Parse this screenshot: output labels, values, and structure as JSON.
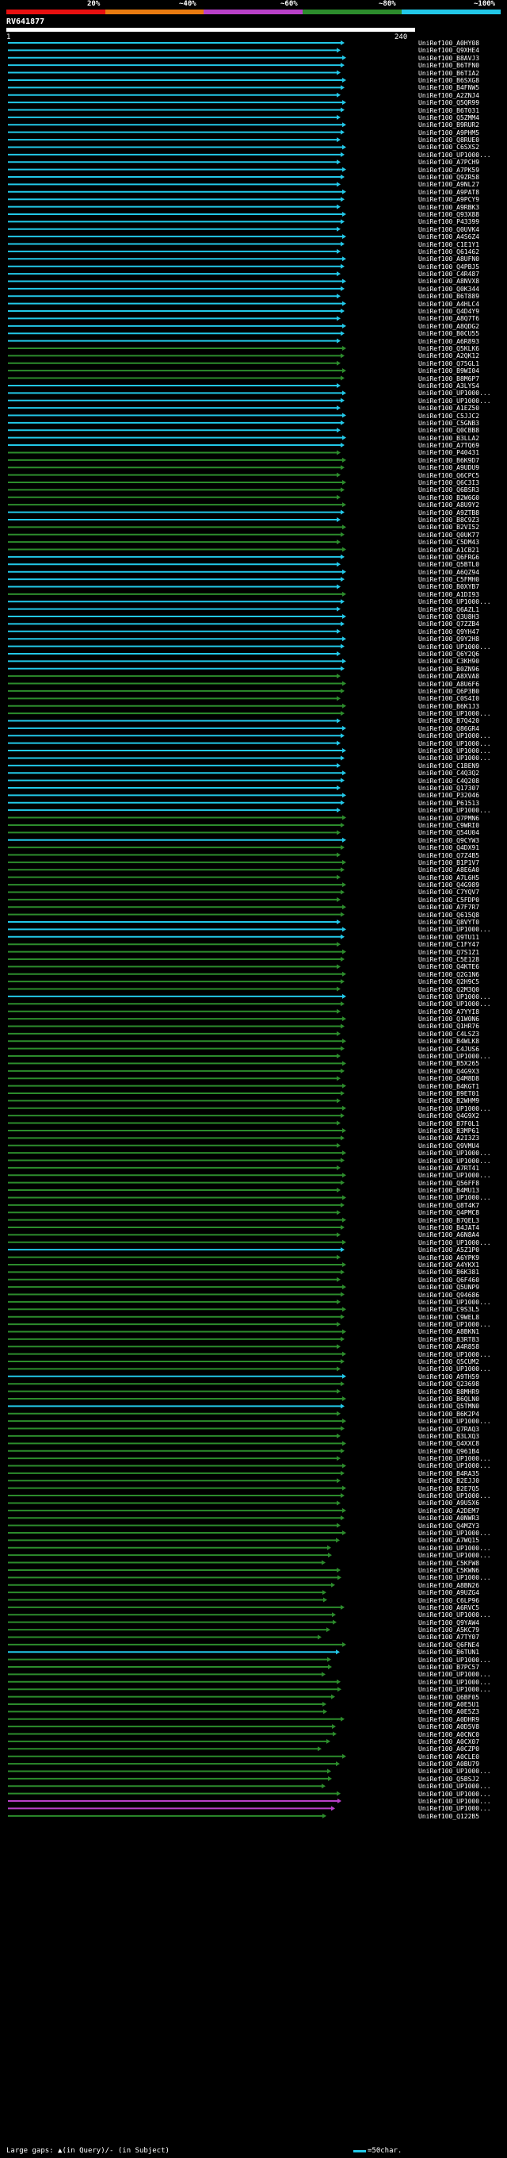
{
  "colorbar": {
    "labels": [
      "20%",
      "~40%",
      "~60%",
      "~80%",
      "~100%"
    ],
    "colors": [
      "#e81010",
      "#e87a10",
      "#b840c8",
      "#2c8c2c",
      "#22c8e8"
    ]
  },
  "query": {
    "name": "RV641877",
    "start": "1",
    "end": "240"
  },
  "footer": {
    "gaps_text": "Large gaps: ▲(in Query)/- (in Subject)",
    "scale_text": "=50char."
  },
  "hits": [
    {
      "id": "UniRef100_A0HY08",
      "color": "#22c8e8"
    },
    {
      "id": "UniRef100_Q9XHE4",
      "color": "#22c8e8"
    },
    {
      "id": "UniRef100_B8AVJ3",
      "color": "#22c8e8"
    },
    {
      "id": "UniRef100_B6TFN0",
      "color": "#22c8e8"
    },
    {
      "id": "UniRef100_B6TIA2",
      "color": "#22c8e8"
    },
    {
      "id": "UniRef100_B6SXG8",
      "color": "#22c8e8"
    },
    {
      "id": "UniRef100_B4FNW5",
      "color": "#22c8e8"
    },
    {
      "id": "UniRef100_A2ZNJ4",
      "color": "#22c8e8"
    },
    {
      "id": "UniRef100_Q5QR99",
      "color": "#22c8e8"
    },
    {
      "id": "UniRef100_B6T031",
      "color": "#22c8e8"
    },
    {
      "id": "UniRef100_Q5ZMM4",
      "color": "#22c8e8"
    },
    {
      "id": "UniRef100_B9RUR2",
      "color": "#22c8e8"
    },
    {
      "id": "UniRef100_A9PHM5",
      "color": "#22c8e8"
    },
    {
      "id": "UniRef100_Q8RUE0",
      "color": "#22c8e8"
    },
    {
      "id": "UniRef100_C6SXS2",
      "color": "#22c8e8"
    },
    {
      "id": "UniRef100_UP1000...",
      "color": "#22c8e8"
    },
    {
      "id": "UniRef100_A7PCH9",
      "color": "#22c8e8"
    },
    {
      "id": "UniRef100_A7PK59",
      "color": "#22c8e8"
    },
    {
      "id": "UniRef100_Q9ZR58",
      "color": "#22c8e8"
    },
    {
      "id": "UniRef100_A9NL27",
      "color": "#22c8e8"
    },
    {
      "id": "UniRef100_A9PAT8",
      "color": "#22c8e8"
    },
    {
      "id": "UniRef100_A9PCY9",
      "color": "#22c8e8"
    },
    {
      "id": "UniRef100_A9RBK3",
      "color": "#22c8e8"
    },
    {
      "id": "UniRef100_Q93X88",
      "color": "#22c8e8"
    },
    {
      "id": "UniRef100_P43399",
      "color": "#22c8e8"
    },
    {
      "id": "UniRef100_Q0UVK4",
      "color": "#22c8e8"
    },
    {
      "id": "UniRef100_A4S6Z4",
      "color": "#22c8e8"
    },
    {
      "id": "UniRef100_C1E1Y1",
      "color": "#22c8e8"
    },
    {
      "id": "UniRef100_Q61462",
      "color": "#22c8e8"
    },
    {
      "id": "UniRef100_A8UFN0",
      "color": "#22c8e8"
    },
    {
      "id": "UniRef100_Q4PBJ5",
      "color": "#22c8e8"
    },
    {
      "id": "UniRef100_C4R487",
      "color": "#22c8e8"
    },
    {
      "id": "UniRef100_A8NVX8",
      "color": "#22c8e8"
    },
    {
      "id": "UniRef100_Q0K344",
      "color": "#22c8e8"
    },
    {
      "id": "UniRef100_B6T889",
      "color": "#22c8e8"
    },
    {
      "id": "UniRef100_A4HLC4",
      "color": "#22c8e8"
    },
    {
      "id": "UniRef100_Q4D4Y9",
      "color": "#22c8e8"
    },
    {
      "id": "UniRef100_A8Q7T6",
      "color": "#22c8e8"
    },
    {
      "id": "UniRef100_A8QDG2",
      "color": "#22c8e8"
    },
    {
      "id": "UniRef100_B0CU55",
      "color": "#22c8e8"
    },
    {
      "id": "UniRef100_A6R893",
      "color": "#22c8e8"
    },
    {
      "id": "UniRef100_Q5KLK6",
      "color": "#2c8c2c"
    },
    {
      "id": "UniRef100_A2QK12",
      "color": "#2c8c2c"
    },
    {
      "id": "UniRef100_Q75GL1",
      "color": "#2c8c2c"
    },
    {
      "id": "UniRef100_B9WI04",
      "color": "#2c8c2c"
    },
    {
      "id": "UniRef100_B8M6P7",
      "color": "#2c8c2c"
    },
    {
      "id": "UniRef100_A3LYS4",
      "color": "#22c8e8"
    },
    {
      "id": "UniRef100_UP1000...",
      "color": "#22c8e8"
    },
    {
      "id": "UniRef100_UP1000...",
      "color": "#22c8e8"
    },
    {
      "id": "UniRef100_A1EZ50",
      "color": "#22c8e8"
    },
    {
      "id": "UniRef100_C5JJC2",
      "color": "#22c8e8"
    },
    {
      "id": "UniRef100_C5GNB3",
      "color": "#22c8e8"
    },
    {
      "id": "UniRef100_Q0CBB8",
      "color": "#22c8e8"
    },
    {
      "id": "UniRef100_B3LLA2",
      "color": "#22c8e8"
    },
    {
      "id": "UniRef100_A7TQ69",
      "color": "#22c8e8"
    },
    {
      "id": "UniRef100_P40431",
      "color": "#2c8c2c"
    },
    {
      "id": "UniRef100_B6K9D7",
      "color": "#2c8c2c"
    },
    {
      "id": "UniRef100_A9UDU9",
      "color": "#2c8c2c"
    },
    {
      "id": "UniRef100_Q6CPC5",
      "color": "#2c8c2c"
    },
    {
      "id": "UniRef100_Q6C3I3",
      "color": "#2c8c2c"
    },
    {
      "id": "UniRef100_Q6BSR3",
      "color": "#2c8c2c"
    },
    {
      "id": "UniRef100_B2W6G0",
      "color": "#2c8c2c"
    },
    {
      "id": "UniRef100_A8U9Y2",
      "color": "#2c8c2c"
    },
    {
      "id": "UniRef100_A9ZTB8",
      "color": "#22c8e8"
    },
    {
      "id": "UniRef100_B8C9Z3",
      "color": "#22c8e8"
    },
    {
      "id": "UniRef100_B2VI52",
      "color": "#2c8c2c"
    },
    {
      "id": "UniRef100_Q0UK77",
      "color": "#2c8c2c"
    },
    {
      "id": "UniRef100_C5DM43",
      "color": "#2c8c2c"
    },
    {
      "id": "UniRef100_A1CB21",
      "color": "#2c8c2c"
    },
    {
      "id": "UniRef100_Q6FRG6",
      "color": "#22c8e8"
    },
    {
      "id": "UniRef100_Q5BTL0",
      "color": "#22c8e8"
    },
    {
      "id": "UniRef100_A6QZ94",
      "color": "#22c8e8"
    },
    {
      "id": "UniRef100_C5FMH0",
      "color": "#22c8e8"
    },
    {
      "id": "UniRef100_B0XYB7",
      "color": "#22c8e8"
    },
    {
      "id": "UniRef100_A1DI93",
      "color": "#2c8c2c"
    },
    {
      "id": "UniRef100_UP1000...",
      "color": "#22c8e8"
    },
    {
      "id": "UniRef100_Q6AZL1",
      "color": "#22c8e8"
    },
    {
      "id": "UniRef100_Q3U8H3",
      "color": "#22c8e8"
    },
    {
      "id": "UniRef100_Q7ZZB4",
      "color": "#22c8e8"
    },
    {
      "id": "UniRef100_Q9YH47",
      "color": "#22c8e8"
    },
    {
      "id": "UniRef100_Q9Y2H8",
      "color": "#22c8e8"
    },
    {
      "id": "UniRef100_UP1000...",
      "color": "#22c8e8"
    },
    {
      "id": "UniRef100_Q6Y2Q6",
      "color": "#22c8e8"
    },
    {
      "id": "UniRef100_C3KH90",
      "color": "#22c8e8"
    },
    {
      "id": "UniRef100_B0ZN96",
      "color": "#22c8e8"
    },
    {
      "id": "UniRef100_A8XVA8",
      "color": "#2c8c2c"
    },
    {
      "id": "UniRef100_A8U6F6",
      "color": "#2c8c2c"
    },
    {
      "id": "UniRef100_Q6P3B0",
      "color": "#2c8c2c"
    },
    {
      "id": "UniRef100_C0S4I0",
      "color": "#2c8c2c"
    },
    {
      "id": "UniRef100_B6K1J3",
      "color": "#2c8c2c"
    },
    {
      "id": "UniRef100_UP1000...",
      "color": "#2c8c2c"
    },
    {
      "id": "UniRef100_B7Q420",
      "color": "#22c8e8"
    },
    {
      "id": "UniRef100_Q86GR4",
      "color": "#22c8e8"
    },
    {
      "id": "UniRef100_UP1000...",
      "color": "#22c8e8"
    },
    {
      "id": "UniRef100_UP1000...",
      "color": "#22c8e8"
    },
    {
      "id": "UniRef100_UP1000...",
      "color": "#22c8e8"
    },
    {
      "id": "UniRef100_UP1000...",
      "color": "#22c8e8"
    },
    {
      "id": "UniRef100_C1BEN9",
      "color": "#22c8e8"
    },
    {
      "id": "UniRef100_C4Q3Q2",
      "color": "#22c8e8"
    },
    {
      "id": "UniRef100_C4Q208",
      "color": "#22c8e8"
    },
    {
      "id": "UniRef100_Q17307",
      "color": "#22c8e8"
    },
    {
      "id": "UniRef100_P32046",
      "color": "#22c8e8"
    },
    {
      "id": "UniRef100_P61513",
      "color": "#22c8e8"
    },
    {
      "id": "UniRef100_UP1000...",
      "color": "#22c8e8"
    },
    {
      "id": "UniRef100_Q7PMN6",
      "color": "#2c8c2c"
    },
    {
      "id": "UniRef100_C9WRI0",
      "color": "#2c8c2c"
    },
    {
      "id": "UniRef100_Q54U04",
      "color": "#2c8c2c"
    },
    {
      "id": "UniRef100_Q9CYW3",
      "color": "#22c8e8"
    },
    {
      "id": "UniRef100_Q4DX91",
      "color": "#2c8c2c"
    },
    {
      "id": "UniRef100_Q7Z4B5",
      "color": "#2c8c2c"
    },
    {
      "id": "UniRef100_B1P1V7",
      "color": "#2c8c2c"
    },
    {
      "id": "UniRef100_A8E6A0",
      "color": "#2c8c2c"
    },
    {
      "id": "UniRef100_A7L6H5",
      "color": "#2c8c2c"
    },
    {
      "id": "UniRef100_Q4G989",
      "color": "#2c8c2c"
    },
    {
      "id": "UniRef100_C7YQV7",
      "color": "#2c8c2c"
    },
    {
      "id": "UniRef100_C5FDP0",
      "color": "#2c8c2c"
    },
    {
      "id": "UniRef100_A7F7R7",
      "color": "#2c8c2c"
    },
    {
      "id": "UniRef100_Q615Q8",
      "color": "#2c8c2c"
    },
    {
      "id": "UniRef100_Q8VYT0",
      "color": "#22c8e8"
    },
    {
      "id": "UniRef100_UP1000...",
      "color": "#22c8e8"
    },
    {
      "id": "UniRef100_Q9TU11",
      "color": "#22c8e8"
    },
    {
      "id": "UniRef100_C1FY47",
      "color": "#2c8c2c"
    },
    {
      "id": "UniRef100_Q7S1Z1",
      "color": "#2c8c2c"
    },
    {
      "id": "UniRef100_C5E128",
      "color": "#2c8c2c"
    },
    {
      "id": "UniRef100_Q4KTE6",
      "color": "#2c8c2c"
    },
    {
      "id": "UniRef100_Q2G1N6",
      "color": "#2c8c2c"
    },
    {
      "id": "UniRef100_Q2H9C5",
      "color": "#2c8c2c"
    },
    {
      "id": "UniRef100_Q2M3Q0",
      "color": "#2c8c2c"
    },
    {
      "id": "UniRef100_UP1000...",
      "color": "#22c8e8"
    },
    {
      "id": "UniRef100_UP1000...",
      "color": "#2c8c2c"
    },
    {
      "id": "UniRef100_A7YYI8",
      "color": "#2c8c2c"
    },
    {
      "id": "UniRef100_Q1W0N6",
      "color": "#2c8c2c"
    },
    {
      "id": "UniRef100_Q1HR76",
      "color": "#2c8c2c"
    },
    {
      "id": "UniRef100_C4LSZ3",
      "color": "#2c8c2c"
    },
    {
      "id": "UniRef100_B4WLK8",
      "color": "#2c8c2c"
    },
    {
      "id": "UniRef100_C4JUS6",
      "color": "#2c8c2c"
    },
    {
      "id": "UniRef100_UP1000...",
      "color": "#2c8c2c"
    },
    {
      "id": "UniRef100_B5X265",
      "color": "#2c8c2c"
    },
    {
      "id": "UniRef100_Q4G9X3",
      "color": "#2c8c2c"
    },
    {
      "id": "UniRef100_Q4M8D8",
      "color": "#2c8c2c"
    },
    {
      "id": "UniRef100_B4KGT1",
      "color": "#2c8c2c"
    },
    {
      "id": "UniRef100_B9ET01",
      "color": "#2c8c2c"
    },
    {
      "id": "UniRef100_B2WHM9",
      "color": "#2c8c2c"
    },
    {
      "id": "UniRef100_UP1000...",
      "color": "#2c8c2c"
    },
    {
      "id": "UniRef100_Q4G9X2",
      "color": "#2c8c2c"
    },
    {
      "id": "UniRef100_B7F0L1",
      "color": "#2c8c2c"
    },
    {
      "id": "UniRef100_B3MP61",
      "color": "#2c8c2c"
    },
    {
      "id": "UniRef100_A2I3Z3",
      "color": "#2c8c2c"
    },
    {
      "id": "UniRef100_Q9VMU4",
      "color": "#2c8c2c"
    },
    {
      "id": "UniRef100_UP1000...",
      "color": "#2c8c2c"
    },
    {
      "id": "UniRef100_UP1000...",
      "color": "#2c8c2c"
    },
    {
      "id": "UniRef100_A7RT41",
      "color": "#2c8c2c"
    },
    {
      "id": "UniRef100_UP1000...",
      "color": "#2c8c2c"
    },
    {
      "id": "UniRef100_Q56FF8",
      "color": "#2c8c2c"
    },
    {
      "id": "UniRef100_B4MU13",
      "color": "#2c8c2c"
    },
    {
      "id": "UniRef100_UP1000...",
      "color": "#2c8c2c"
    },
    {
      "id": "UniRef100_Q8T4K7",
      "color": "#2c8c2c"
    },
    {
      "id": "UniRef100_Q4PMC8",
      "color": "#2c8c2c"
    },
    {
      "id": "UniRef100_B7QEL3",
      "color": "#2c8c2c"
    },
    {
      "id": "UniRef100_B4JAT4",
      "color": "#2c8c2c"
    },
    {
      "id": "UniRef100_A6N8A4",
      "color": "#2c8c2c"
    },
    {
      "id": "UniRef100_UP1000...",
      "color": "#2c8c2c"
    },
    {
      "id": "UniRef100_A5Z1P0",
      "color": "#22c8e8"
    },
    {
      "id": "UniRef100_A6YPK9",
      "color": "#2c8c2c"
    },
    {
      "id": "UniRef100_A4YKX1",
      "color": "#2c8c2c"
    },
    {
      "id": "UniRef100_B6K381",
      "color": "#2c8c2c"
    },
    {
      "id": "UniRef100_Q6F460",
      "color": "#2c8c2c"
    },
    {
      "id": "UniRef100_Q5UNP9",
      "color": "#2c8c2c"
    },
    {
      "id": "UniRef100_Q94686",
      "color": "#2c8c2c"
    },
    {
      "id": "UniRef100_UP1000...",
      "color": "#2c8c2c"
    },
    {
      "id": "UniRef100_C9S3L5",
      "color": "#2c8c2c"
    },
    {
      "id": "UniRef100_C9WEL8",
      "color": "#2c8c2c"
    },
    {
      "id": "UniRef100_UP1000...",
      "color": "#2c8c2c"
    },
    {
      "id": "UniRef100_A8BKN1",
      "color": "#2c8c2c"
    },
    {
      "id": "UniRef100_B3RT83",
      "color": "#2c8c2c"
    },
    {
      "id": "UniRef100_A4R858",
      "color": "#2c8c2c"
    },
    {
      "id": "UniRef100_UP1000...",
      "color": "#2c8c2c"
    },
    {
      "id": "UniRef100_Q5CUM2",
      "color": "#2c8c2c"
    },
    {
      "id": "UniRef100_UP1000...",
      "color": "#2c8c2c"
    },
    {
      "id": "UniRef100_A9TH59",
      "color": "#22c8e8"
    },
    {
      "id": "UniRef100_Q23698",
      "color": "#2c8c2c"
    },
    {
      "id": "UniRef100_B8MHR9",
      "color": "#2c8c2c"
    },
    {
      "id": "UniRef100_B6QLN0",
      "color": "#2c8c2c"
    },
    {
      "id": "UniRef100_Q5TMN0",
      "color": "#22c8e8"
    },
    {
      "id": "UniRef100_B6K2P4",
      "color": "#2c8c2c"
    },
    {
      "id": "UniRef100_UP1000...",
      "color": "#2c8c2c"
    },
    {
      "id": "UniRef100_Q7RAQ3",
      "color": "#2c8c2c"
    },
    {
      "id": "UniRef100_B3LXQ3",
      "color": "#2c8c2c"
    },
    {
      "id": "UniRef100_Q4XXC8",
      "color": "#2c8c2c"
    },
    {
      "id": "UniRef100_Q961B4",
      "color": "#2c8c2c"
    },
    {
      "id": "UniRef100_UP1000...",
      "color": "#2c8c2c"
    },
    {
      "id": "UniRef100_UP1000...",
      "color": "#2c8c2c"
    },
    {
      "id": "UniRef100_B4RA35",
      "color": "#2c8c2c"
    },
    {
      "id": "UniRef100_B2EJJ0",
      "color": "#2c8c2c"
    },
    {
      "id": "UniRef100_B2E7Q5",
      "color": "#2c8c2c"
    },
    {
      "id": "UniRef100_UP1000...",
      "color": "#2c8c2c"
    },
    {
      "id": "UniRef100_A9U5X6",
      "color": "#2c8c2c"
    },
    {
      "id": "UniRef100_A2DEM7",
      "color": "#2c8c2c"
    },
    {
      "id": "UniRef100_A0NWR3",
      "color": "#2c8c2c"
    },
    {
      "id": "UniRef100_Q4MZY3",
      "color": "#2c8c2c"
    },
    {
      "id": "UniRef100_UP1000...",
      "color": "#2c8c2c"
    },
    {
      "id": "UniRef100_A7WQ15",
      "color": "#2c8c2c"
    },
    {
      "id": "UniRef100_UP1000...",
      "color": "#2c8c2c"
    },
    {
      "id": "UniRef100_UP1000...",
      "color": "#2c8c2c"
    },
    {
      "id": "UniRef100_C5KFW8",
      "color": "#2c8c2c"
    },
    {
      "id": "UniRef100_C5KWN6",
      "color": "#2c8c2c"
    },
    {
      "id": "UniRef100_UP1000...",
      "color": "#2c8c2c"
    },
    {
      "id": "UniRef100_A8BN26",
      "color": "#2c8c2c"
    },
    {
      "id": "UniRef100_A9UZG4",
      "color": "#2c8c2c"
    },
    {
      "id": "UniRef100_C6LP96",
      "color": "#2c8c2c"
    },
    {
      "id": "UniRef100_A6RVC5",
      "color": "#2c8c2c"
    },
    {
      "id": "UniRef100_UP1000...",
      "color": "#2c8c2c"
    },
    {
      "id": "UniRef100_Q9YAW4",
      "color": "#2c8c2c"
    },
    {
      "id": "UniRef100_A5KC79",
      "color": "#2c8c2c"
    },
    {
      "id": "UniRef100_A7TY07",
      "color": "#2c8c2c"
    },
    {
      "id": "UniRef100_Q6FNE4",
      "color": "#2c8c2c"
    },
    {
      "id": "UniRef100_B6TUN1",
      "color": "#22c8e8"
    },
    {
      "id": "UniRef100_UP1000...",
      "color": "#2c8c2c"
    },
    {
      "id": "UniRef100_B7PC57",
      "color": "#2c8c2c"
    },
    {
      "id": "UniRef100_UP1000...",
      "color": "#2c8c2c"
    },
    {
      "id": "UniRef100_UP1000...",
      "color": "#2c8c2c"
    },
    {
      "id": "UniRef100_UP1000...",
      "color": "#2c8c2c"
    },
    {
      "id": "UniRef100_Q6BF05",
      "color": "#2c8c2c"
    },
    {
      "id": "UniRef100_A0E5U1",
      "color": "#2c8c2c"
    },
    {
      "id": "UniRef100_A0E5Z3",
      "color": "#2c8c2c"
    },
    {
      "id": "UniRef100_A0DHR9",
      "color": "#2c8c2c"
    },
    {
      "id": "UniRef100_A0D5V8",
      "color": "#2c8c2c"
    },
    {
      "id": "UniRef100_A0CNC0",
      "color": "#2c8c2c"
    },
    {
      "id": "UniRef100_A0CX07",
      "color": "#2c8c2c"
    },
    {
      "id": "UniRef100_A0CZP0",
      "color": "#2c8c2c"
    },
    {
      "id": "UniRef100_A0CLE0",
      "color": "#2c8c2c"
    },
    {
      "id": "UniRef100_A0BU79",
      "color": "#2c8c2c"
    },
    {
      "id": "UniRef100_UP1000...",
      "color": "#2c8c2c"
    },
    {
      "id": "UniRef100_Q5BSJ2",
      "color": "#2c8c2c"
    },
    {
      "id": "UniRef100_UP1000...",
      "color": "#2c8c2c"
    },
    {
      "id": "UniRef100_UP1000...",
      "color": "#2c8c2c"
    },
    {
      "id": "UniRef100_UP1000...",
      "color": "#b840c8"
    },
    {
      "id": "UniRef100_UP1000...",
      "color": "#b840c8"
    },
    {
      "id": "UniRef100_Q122B5",
      "color": "#2c8c2c"
    }
  ]
}
